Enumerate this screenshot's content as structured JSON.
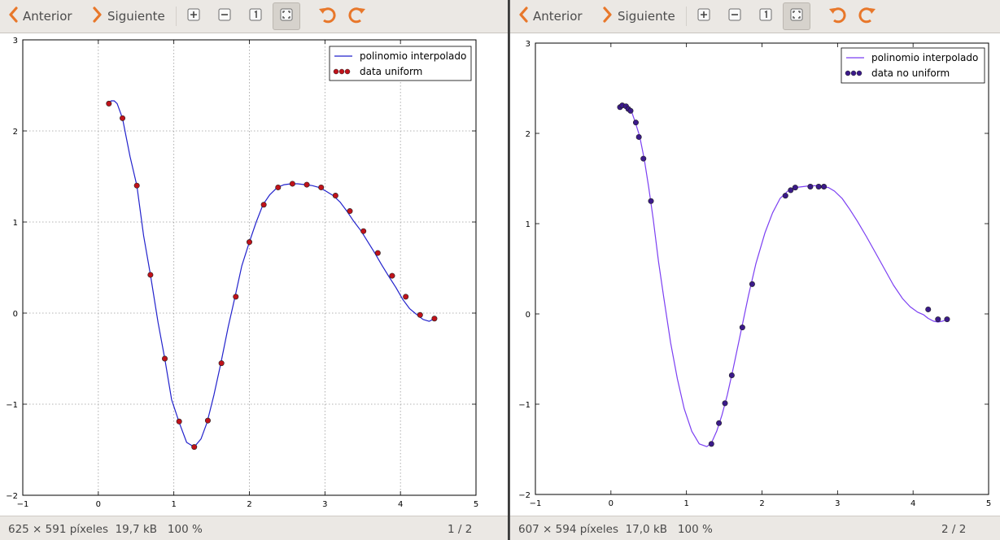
{
  "windows": [
    {
      "toolbar": {
        "prev_label": "Anterior",
        "next_label": "Siguiente",
        "buttons": [
          "zoom-in-icon",
          "zoom-out-icon",
          "zoom-original-icon",
          "best-fit-icon",
          "rotate-left-icon",
          "rotate-right-icon"
        ]
      },
      "status": {
        "info": "625 × 591 píxeles  19,7 kB   100 %",
        "page": "1 / 2"
      },
      "chart_data": {
        "type": "line",
        "xlim": [
          -1,
          5
        ],
        "ylim": [
          -2,
          3
        ],
        "xticks": [
          "−1",
          "0",
          "1",
          "2",
          "3",
          "4",
          "5"
        ],
        "yticks": [
          "−2",
          "−1",
          "0",
          "1",
          "2",
          "3"
        ],
        "grid": true,
        "legend_position": "upper right",
        "series": [
          {
            "name": "polinomio interpolado",
            "kind": "line",
            "color": "#2222cc",
            "x": [
              0.14,
              0.17,
              0.21,
              0.25,
              0.32,
              0.42,
              0.51,
              0.6,
              0.69,
              0.79,
              0.88,
              0.97,
              1.07,
              1.17,
              1.27,
              1.36,
              1.44,
              1.53,
              1.62,
              1.72,
              1.81,
              1.9,
              2.0,
              2.09,
              2.18,
              2.27,
              2.37,
              2.46,
              2.55,
              2.64,
              2.74,
              2.83,
              2.92,
              3.01,
              3.11,
              3.2,
              3.29,
              3.38,
              3.48,
              3.57,
              3.66,
              3.75,
              3.84,
              3.94,
              4.03,
              4.12,
              4.22,
              4.3,
              4.38,
              4.45
            ],
            "y": [
              2.3,
              2.33,
              2.33,
              2.3,
              2.14,
              1.72,
              1.4,
              0.85,
              0.42,
              -0.1,
              -0.5,
              -0.95,
              -1.2,
              -1.42,
              -1.47,
              -1.38,
              -1.2,
              -0.9,
              -0.56,
              -0.15,
              0.18,
              0.52,
              0.78,
              1.0,
              1.19,
              1.3,
              1.38,
              1.41,
              1.42,
              1.42,
              1.41,
              1.4,
              1.38,
              1.34,
              1.29,
              1.22,
              1.12,
              1.01,
              0.9,
              0.78,
              0.66,
              0.53,
              0.41,
              0.28,
              0.15,
              0.05,
              -0.02,
              -0.07,
              -0.09,
              -0.06
            ]
          },
          {
            "name": "data uniform",
            "kind": "scatter",
            "color": "#c0121a",
            "x": [
              0.14,
              0.32,
              0.51,
              0.69,
              0.88,
              1.07,
              1.27,
              1.45,
              1.63,
              1.82,
              2.0,
              2.19,
              2.38,
              2.57,
              2.76,
              2.95,
              3.14,
              3.33,
              3.51,
              3.7,
              3.89,
              4.07,
              4.26,
              4.45
            ],
            "y": [
              2.3,
              2.14,
              1.4,
              0.42,
              -0.5,
              -1.19,
              -1.47,
              -1.18,
              -0.55,
              0.18,
              0.78,
              1.19,
              1.38,
              1.42,
              1.41,
              1.38,
              1.29,
              1.12,
              0.9,
              0.66,
              0.41,
              0.18,
              -0.02,
              -0.06
            ]
          }
        ]
      }
    },
    {
      "toolbar": {
        "prev_label": "Anterior",
        "next_label": "Siguiente",
        "buttons": [
          "zoom-in-icon",
          "zoom-out-icon",
          "zoom-original-icon",
          "best-fit-icon",
          "rotate-left-icon",
          "rotate-right-icon"
        ]
      },
      "status": {
        "info": "607 × 594 píxeles  17,0 kB   100 %",
        "page": "2 / 2"
      },
      "chart_data": {
        "type": "line",
        "xlim": [
          -1,
          5
        ],
        "ylim": [
          -2,
          3
        ],
        "xticks": [
          "−1",
          "0",
          "1",
          "2",
          "3",
          "4",
          "5"
        ],
        "yticks": [
          "−2",
          "−1",
          "0",
          "1",
          "2",
          "3"
        ],
        "grid": false,
        "legend_position": "upper right",
        "series": [
          {
            "name": "polinomio interpolado",
            "kind": "line",
            "color": "#7b3ff2",
            "x": [
              0.12,
              0.17,
              0.22,
              0.27,
              0.32,
              0.38,
              0.44,
              0.5,
              0.56,
              0.63,
              0.7,
              0.79,
              0.88,
              0.97,
              1.07,
              1.17,
              1.27,
              1.33,
              1.4,
              1.47,
              1.54,
              1.62,
              1.72,
              1.82,
              1.92,
              2.04,
              2.14,
              2.24,
              2.34,
              2.44,
              2.54,
              2.64,
              2.72,
              2.8,
              2.88,
              2.96,
              3.06,
              3.16,
              3.26,
              3.38,
              3.5,
              3.62,
              3.74,
              3.86,
              3.96,
              4.06,
              4.14,
              4.2,
              4.27,
              4.33,
              4.39,
              4.45
            ],
            "y": [
              2.3,
              2.31,
              2.3,
              2.25,
              2.13,
              1.97,
              1.72,
              1.4,
              1.05,
              0.58,
              0.18,
              -0.32,
              -0.72,
              -1.05,
              -1.3,
              -1.44,
              -1.47,
              -1.43,
              -1.3,
              -1.12,
              -0.9,
              -0.6,
              -0.2,
              0.2,
              0.56,
              0.9,
              1.12,
              1.28,
              1.36,
              1.4,
              1.41,
              1.42,
              1.42,
              1.41,
              1.4,
              1.36,
              1.28,
              1.16,
              1.03,
              0.86,
              0.68,
              0.5,
              0.32,
              0.17,
              0.08,
              0.02,
              -0.01,
              -0.05,
              -0.08,
              -0.09,
              -0.08,
              -0.06
            ]
          },
          {
            "name": "data no uniform",
            "kind": "scatter",
            "color": "#3b1a8a",
            "x": [
              0.12,
              0.15,
              0.2,
              0.23,
              0.26,
              0.33,
              0.37,
              0.43,
              0.53,
              1.33,
              1.43,
              1.51,
              1.6,
              1.74,
              1.87,
              2.31,
              2.38,
              2.44,
              2.64,
              2.75,
              2.82,
              4.2,
              4.33,
              4.45
            ],
            "y": [
              2.29,
              2.31,
              2.3,
              2.27,
              2.25,
              2.12,
              1.96,
              1.72,
              1.25,
              -1.44,
              -1.21,
              -0.99,
              -0.68,
              -0.15,
              0.33,
              1.31,
              1.37,
              1.4,
              1.41,
              1.41,
              1.41,
              0.05,
              -0.06,
              -0.06
            ]
          }
        ]
      }
    }
  ]
}
